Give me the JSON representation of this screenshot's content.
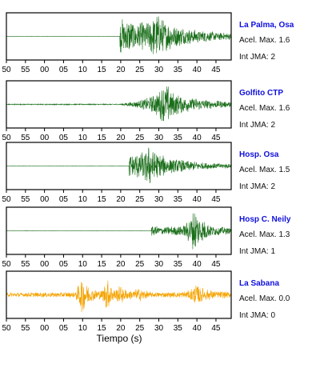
{
  "chart_data": {
    "type": "line",
    "xlabel": "Tiempo (s)",
    "x_tick_labels": [
      "50",
      "55",
      "00",
      "05",
      "10",
      "15",
      "20",
      "25",
      "30",
      "35",
      "40",
      "45"
    ],
    "panels": [
      {
        "station": "La Palma, Osa",
        "acel_label": "Acel. Max. 1.6",
        "jma_label": "Int JMA: 2",
        "color": "#1a6e1a",
        "show_ticks": true,
        "signal": {
          "onset": 19.8,
          "peak": 29.5,
          "peak_amp": 1.0,
          "env": [
            [
              19.8,
              0.75
            ],
            [
              21.5,
              0.85
            ],
            [
              24,
              0.6
            ],
            [
              27,
              0.7
            ],
            [
              29.5,
              1.0
            ],
            [
              31.5,
              0.7
            ],
            [
              35,
              0.45
            ],
            [
              40,
              0.3
            ],
            [
              45,
              0.2
            ],
            [
              49,
              0.15
            ]
          ],
          "noise": 0.0
        }
      },
      {
        "station": "Golfito CTP",
        "acel_label": "Acel. Max. 1.6",
        "jma_label": "Int JMA: 2",
        "color": "#1a6e1a",
        "show_ticks": true,
        "signal": {
          "onset": 20.0,
          "env": [
            [
              20,
              0.03
            ],
            [
              25,
              0.18
            ],
            [
              28,
              0.35
            ],
            [
              30,
              0.6
            ],
            [
              32,
              0.95
            ],
            [
              34,
              0.5
            ],
            [
              37,
              0.35
            ],
            [
              42,
              0.22
            ],
            [
              49,
              0.12
            ]
          ],
          "noise": 0.02
        }
      },
      {
        "station": "Hosp. Osa",
        "acel_label": "Acel. Max. 1.5",
        "jma_label": "Int JMA: 2",
        "color": "#1a6e1a",
        "show_ticks": true,
        "signal": {
          "onset": 22.2,
          "env": [
            [
              22.2,
              0.55
            ],
            [
              24,
              0.55
            ],
            [
              26,
              0.65
            ],
            [
              28,
              1.0
            ],
            [
              30,
              0.55
            ],
            [
              33,
              0.35
            ],
            [
              37,
              0.25
            ],
            [
              42,
              0.15
            ],
            [
              49,
              0.1
            ]
          ],
          "noise": 0.0
        }
      },
      {
        "station": "Hosp C. Neily",
        "acel_label": "Acel. Max. 1.3",
        "jma_label": "Int JMA: 1",
        "color": "#1a6e1a",
        "show_ticks": true,
        "signal": {
          "onset": 28.0,
          "env": [
            [
              28,
              0.25
            ],
            [
              30,
              0.2
            ],
            [
              34,
              0.2
            ],
            [
              37,
              0.3
            ],
            [
              39.5,
              1.0
            ],
            [
              41,
              0.55
            ],
            [
              44,
              0.25
            ],
            [
              49,
              0.12
            ]
          ],
          "noise": 0.0
        }
      },
      {
        "station": "La Sabana",
        "acel_label": "Acel. Max. 0.0",
        "jma_label": "Int JMA: 0",
        "color": "#f5a300",
        "show_ticks": true,
        "signal": {
          "onset": -10,
          "env": [
            [
              -10,
              0.1
            ],
            [
              8,
              0.12
            ],
            [
              10,
              0.9
            ],
            [
              12,
              0.3
            ],
            [
              15,
              0.2
            ],
            [
              16.5,
              0.75
            ],
            [
              18,
              0.3
            ],
            [
              20,
              0.4
            ],
            [
              22,
              0.2
            ],
            [
              25,
              0.3
            ],
            [
              28,
              0.12
            ],
            [
              35,
              0.12
            ],
            [
              38,
              0.2
            ],
            [
              40,
              0.5
            ],
            [
              42,
              0.25
            ],
            [
              49,
              0.12
            ]
          ],
          "noise": 0.1
        }
      }
    ],
    "xlim": [
      -10,
      49
    ]
  }
}
